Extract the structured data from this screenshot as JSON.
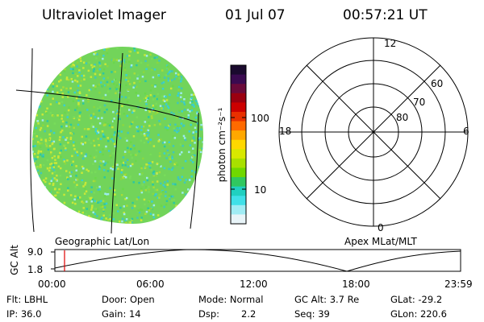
{
  "header": {
    "title": "Ultraviolet Imager",
    "date": "01 Jul 07",
    "time": "00:57:21 UT"
  },
  "colorbar": {
    "label": "photon cm⁻²s⁻¹",
    "ticks": [
      "100",
      "10"
    ],
    "colors": [
      "#1a0a2e",
      "#3a0a50",
      "#6a0a3a",
      "#9a0010",
      "#cc0000",
      "#e83000",
      "#ff6a00",
      "#ffa800",
      "#ffd800",
      "#d8e800",
      "#a8e000",
      "#70d800",
      "#30c860",
      "#20d0c0",
      "#40e0e8",
      "#a0ecf4",
      "#e8f4f8"
    ]
  },
  "left_panel": {
    "caption": "Geographic Lat/Lon",
    "dot_colors": [
      "#6ad84a",
      "#8ad840",
      "#a6dc3a",
      "#40c8b8",
      "#38d0d0",
      "#78dc5a",
      "#c8e838",
      "#2cc8a0",
      "#9cecee"
    ]
  },
  "right_panel": {
    "caption": "Apex MLat/MLT",
    "mlt_labels": [
      "12",
      "18",
      "6",
      "0"
    ],
    "mlat_labels": [
      "60",
      "70",
      "80"
    ]
  },
  "timeline": {
    "y_axis_label": "GC Alt",
    "y_ticks": [
      "9.0",
      "1.8"
    ],
    "x_ticks": [
      "00:00",
      "06:00",
      "12:00",
      "18:00",
      "23:59"
    ],
    "marker_color": "#e00000"
  },
  "footer": {
    "flt": "Flt: LBHL",
    "ip": "IP: 36.0",
    "door": "Door: Open",
    "gain": "Gain: 14",
    "mode": "Mode: Normal",
    "dsp_label": "Dsp:",
    "dsp_value": "2.2",
    "gc_alt": "GC Alt: 3.7 Re",
    "seq": "Seq: 39",
    "glat": "GLat: -29.2",
    "glon": "GLon: 220.6"
  }
}
